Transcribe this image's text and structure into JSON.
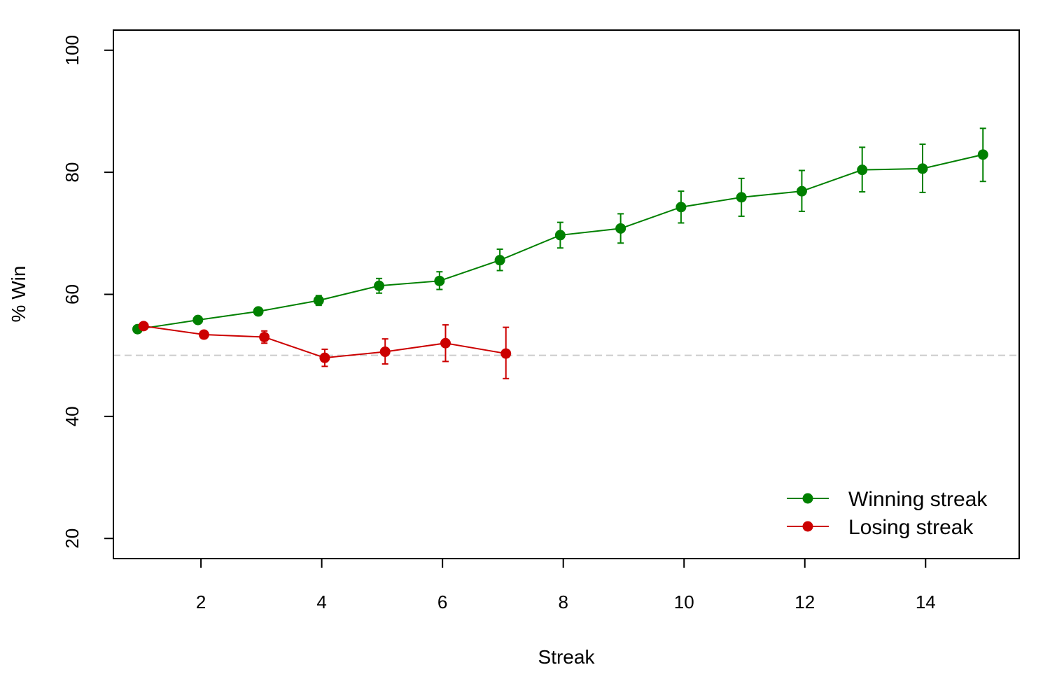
{
  "chart_data": {
    "type": "line",
    "title": "",
    "xlabel": "Streak",
    "ylabel": "% Win",
    "xlim": [
      0.55,
      15.55
    ],
    "ylim": [
      16.7,
      103.3
    ],
    "xticks": [
      2,
      4,
      6,
      8,
      10,
      12,
      14
    ],
    "yticks": [
      20,
      40,
      60,
      80,
      100
    ],
    "grid": false,
    "reference_line": {
      "y": 50,
      "style": "dashed",
      "color": "#cccccc"
    },
    "legend": {
      "placement": "bottom-right"
    },
    "series": [
      {
        "name": "Winning streak",
        "color": "#008000",
        "x": [
          1,
          2,
          3,
          4,
          5,
          6,
          7,
          8,
          9,
          10,
          11,
          12,
          13,
          14,
          15
        ],
        "y": [
          54.3,
          55.8,
          57.2,
          59.0,
          61.4,
          62.2,
          65.6,
          69.7,
          70.8,
          74.3,
          75.9,
          76.9,
          80.4,
          80.6,
          82.9
        ],
        "y_low": [
          54.1,
          55.5,
          56.7,
          58.2,
          60.2,
          60.8,
          63.9,
          67.6,
          68.4,
          71.7,
          72.8,
          73.6,
          76.8,
          76.7,
          78.5
        ],
        "y_high": [
          54.6,
          56.2,
          57.6,
          59.8,
          62.6,
          63.7,
          67.4,
          71.8,
          73.2,
          76.9,
          79.0,
          80.3,
          84.1,
          84.6,
          87.2
        ]
      },
      {
        "name": "Losing streak",
        "color": "#cc0000",
        "x": [
          1,
          2,
          3,
          4,
          5,
          6,
          7
        ],
        "y": [
          54.8,
          53.4,
          53.0,
          49.6,
          50.6,
          52.0,
          50.3
        ],
        "y_low": [
          54.6,
          53.0,
          52.0,
          48.2,
          48.6,
          49.0,
          46.2
        ],
        "y_high": [
          55.0,
          53.8,
          54.0,
          51.0,
          52.7,
          55.0,
          54.6
        ]
      }
    ]
  }
}
